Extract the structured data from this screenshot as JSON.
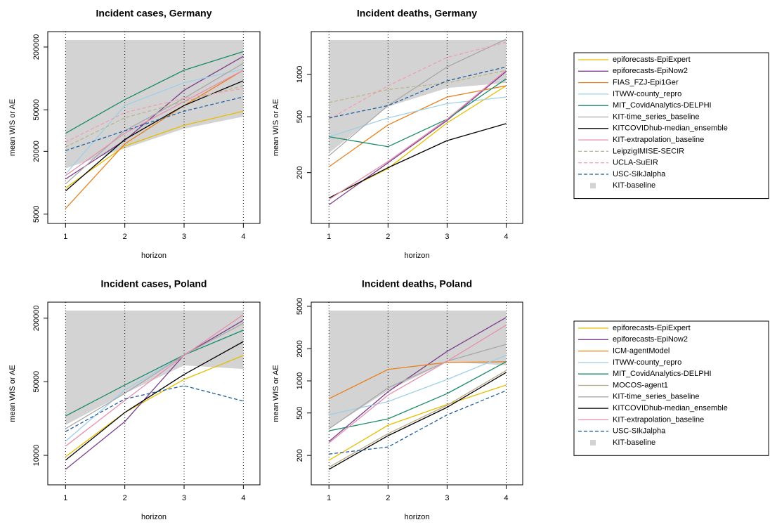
{
  "chart_data": [
    {
      "type": "line",
      "title": "Incident cases, Germany",
      "x_label": "horizon",
      "y_label": "mean WIS or AE",
      "x": [
        1,
        2,
        3,
        4
      ],
      "xlim": [
        0.7,
        4.28
      ],
      "xticks": [
        1,
        2,
        3,
        4
      ],
      "ylim": [
        4070,
        281000
      ],
      "yticks": [
        5000,
        20000,
        50000,
        200000
      ],
      "log_y": true,
      "grid_x": true,
      "legend": false,
      "series": [
        {
          "name": "KIT-baseline",
          "color": "#d3d3d3",
          "style": "area",
          "values": [
            13700,
            21300,
            33000,
            43000
          ]
        },
        {
          "name": "epiforecasts-EpiExpert",
          "color": "#e6be00",
          "values": [
            8900,
            22500,
            35600,
            48500
          ]
        },
        {
          "name": "epiforecasts-EpiNow2",
          "color": "#7b3f8c",
          "values": [
            10850,
            25500,
            77000,
            163000
          ]
        },
        {
          "name": "FIAS_FZJ-Epi1Ger",
          "color": "#e8801e",
          "values": [
            5650,
            23600,
            55000,
            120000
          ]
        },
        {
          "name": "ITWW-county_repro",
          "color": "#9fcfe8",
          "values": [
            12100,
            55000,
            91000,
            123000
          ]
        },
        {
          "name": "MIT_CovidAnalytics-DELPHI",
          "color": "#1a8a68",
          "values": [
            29800,
            62600,
            120000,
            181000
          ]
        },
        {
          "name": "KIT-time_series_baseline",
          "color": "#a8a8a8",
          "values": [
            9750,
            31500,
            64500,
            140000
          ]
        },
        {
          "name": "KITCOVIDhub-median_ensemble",
          "color": "#000000",
          "values": [
            8330,
            26000,
            55000,
            95000
          ]
        },
        {
          "name": "KIT-extrapolation_baseline",
          "color": "#e68fb0",
          "values": [
            11700,
            29800,
            60000,
            120000
          ]
        },
        {
          "name": "LeipzigIMISE-SECIR",
          "color": "#bdb58a",
          "dash": true,
          "values": [
            22000,
            42000,
            60000,
            85000
          ]
        },
        {
          "name": "UCLA-SuEIR",
          "color": "#f0a0b0",
          "dash": true,
          "values": [
            24500,
            47000,
            64500,
            80000
          ]
        },
        {
          "name": "USC-SIkJalpha",
          "color": "#1f5f9f",
          "dash": true,
          "values": [
            20300,
            31500,
            48500,
            66500
          ]
        }
      ]
    },
    {
      "type": "line",
      "title": "Incident deaths, Germany",
      "x_label": "horizon",
      "y_label": "mean WIS or AE",
      "x": [
        1,
        2,
        3,
        4
      ],
      "xlim": [
        0.7,
        4.28
      ],
      "xticks": [
        1,
        2,
        3,
        4
      ],
      "ylim": [
        87,
        2015
      ],
      "yticks": [
        200,
        500,
        1000
      ],
      "log_y": true,
      "grid_x": true,
      "legend": true,
      "series": [
        {
          "name": "epiforecasts-EpiExpert",
          "color": "#e6be00",
          "values": [
            132,
            214,
            452,
            830
          ]
        },
        {
          "name": "epiforecasts-EpiNow2",
          "color": "#7b3f8c",
          "values": [
            118,
            235,
            470,
            1050
          ]
        },
        {
          "name": "FIAS_FZJ-Epi1Ger",
          "color": "#e8801e",
          "values": [
            220,
            437,
            690,
            830
          ]
        },
        {
          "name": "ITWW-county_repro",
          "color": "#9fcfe8",
          "values": [
            360,
            490,
            620,
            690
          ]
        },
        {
          "name": "MIT_CovidAnalytics-DELPHI",
          "color": "#1a8a68",
          "values": [
            360,
            306,
            480,
            930
          ]
        },
        {
          "name": "KIT-time_series_baseline",
          "color": "#a8a8a8",
          "values": [
            264,
            600,
            1130,
            1780
          ]
        },
        {
          "name": "KITCOVIDhub-median_ensemble",
          "color": "#000000",
          "values": [
            132,
            217,
            338,
            447
          ]
        },
        {
          "name": "KIT-extrapolation_baseline",
          "color": "#e68fb0",
          "values": [
            129,
            240,
            480,
            1070
          ]
        },
        {
          "name": "LeipzigIMISE-SECIR",
          "color": "#bdb58a",
          "dash": true,
          "values": [
            630,
            780,
            870,
            1070
          ]
        },
        {
          "name": "UCLA-SuEIR",
          "color": "#f0a0b0",
          "dash": true,
          "values": [
            480,
            830,
            1320,
            1690
          ]
        },
        {
          "name": "USC-SIkJalpha",
          "color": "#1f5f9f",
          "dash": true,
          "values": [
            490,
            600,
            900,
            1130
          ]
        },
        {
          "name": "KIT-baseline",
          "color": "#d3d3d3",
          "style": "area",
          "values": [
            276,
            590,
            800,
            870
          ]
        }
      ]
    },
    {
      "type": "line",
      "title": "Incident cases, Poland",
      "x_label": "horizon",
      "y_label": "mean WIS or AE",
      "x": [
        1,
        2,
        3,
        4
      ],
      "xlim": [
        0.7,
        4.28
      ],
      "xticks": [
        1,
        2,
        3,
        4
      ],
      "ylim": [
        5250,
        284000
      ],
      "yticks": [
        10000,
        50000,
        200000
      ],
      "log_y": true,
      "grid_x": true,
      "legend": false,
      "series": [
        {
          "name": "KIT-baseline",
          "color": "#d3d3d3",
          "style": "area",
          "values": [
            19400,
            38700,
            71300,
            66000
          ]
        },
        {
          "name": "epiforecasts-EpiExpert",
          "color": "#e6be00",
          "values": [
            9700,
            25500,
            52500,
            88600
          ]
        },
        {
          "name": "epiforecasts-EpiNow2",
          "color": "#7b3f8c",
          "values": [
            7360,
            20900,
            89600,
            191000
          ]
        },
        {
          "name": "ITWW-county_repro",
          "color": "#9fcfe8",
          "values": [
            13600,
            41700,
            89600,
            154000
          ]
        },
        {
          "name": "MIT_CovidAnalytics-DELPHI",
          "color": "#1a8a68",
          "values": [
            23600,
            46500,
            89600,
            154000
          ]
        },
        {
          "name": "KIT-time_series_baseline",
          "color": "#a8a8a8",
          "values": [
            17900,
            38700,
            89600,
            179000
          ]
        },
        {
          "name": "KITCOVIDhub-median_ensemble",
          "color": "#000000",
          "values": [
            9000,
            25500,
            58500,
            120000
          ]
        },
        {
          "name": "KIT-extrapolation_baseline",
          "color": "#e68fb0",
          "values": [
            12200,
            33200,
            88600,
            216000
          ]
        },
        {
          "name": "USC-SIkJalpha",
          "color": "#1f5f9f",
          "dash": true,
          "values": [
            16800,
            34200,
            45800,
            32700
          ]
        }
      ]
    },
    {
      "type": "line",
      "title": "Incident deaths, Poland",
      "x_label": "horizon",
      "y_label": "mean WIS or AE",
      "x": [
        1,
        2,
        3,
        4
      ],
      "xlim": [
        0.7,
        4.28
      ],
      "xticks": [
        1,
        2,
        3,
        4
      ],
      "ylim": [
        106,
        5470
      ],
      "yticks": [
        200,
        500,
        1000,
        2000,
        5000
      ],
      "log_y": true,
      "grid_x": true,
      "legend": true,
      "series": [
        {
          "name": "epiforecasts-EpiExpert",
          "color": "#e6be00",
          "values": [
            180,
            384,
            600,
            915
          ]
        },
        {
          "name": "epiforecasts-EpiNow2",
          "color": "#7b3f8c",
          "values": [
            270,
            790,
            1890,
            3930
          ]
        },
        {
          "name": "ICM-agentModel",
          "color": "#e8801e",
          "values": [
            680,
            1280,
            1490,
            1510
          ]
        },
        {
          "name": "ITWW-county_repro",
          "color": "#9fcfe8",
          "values": [
            480,
            640,
            1030,
            1740
          ]
        },
        {
          "name": "MIT_CovidAnalytics-DELPHI",
          "color": "#1a8a68",
          "values": [
            340,
            440,
            760,
            1510
          ]
        },
        {
          "name": "MOCOS-agent1",
          "color": "#b8a888",
          "values": [
            155,
            320,
            590,
            1250
          ]
        },
        {
          "name": "KIT-time_series_baseline",
          "color": "#a8a8a8",
          "values": [
            355,
            860,
            1530,
            2200
          ]
        },
        {
          "name": "KITCOVIDhub-median_ensemble",
          "color": "#000000",
          "values": [
            148,
            306,
            565,
            1200
          ]
        },
        {
          "name": "KIT-extrapolation_baseline",
          "color": "#e68fb0",
          "values": [
            262,
            735,
            1530,
            3330
          ]
        },
        {
          "name": "USC-SIkJalpha",
          "color": "#1f5f9f",
          "dash": true,
          "values": [
            206,
            240,
            480,
            810
          ]
        },
        {
          "name": "KIT-baseline",
          "color": "#d3d3d3",
          "style": "area",
          "values": [
            355,
            810,
            1510,
            1400
          ]
        }
      ]
    }
  ]
}
